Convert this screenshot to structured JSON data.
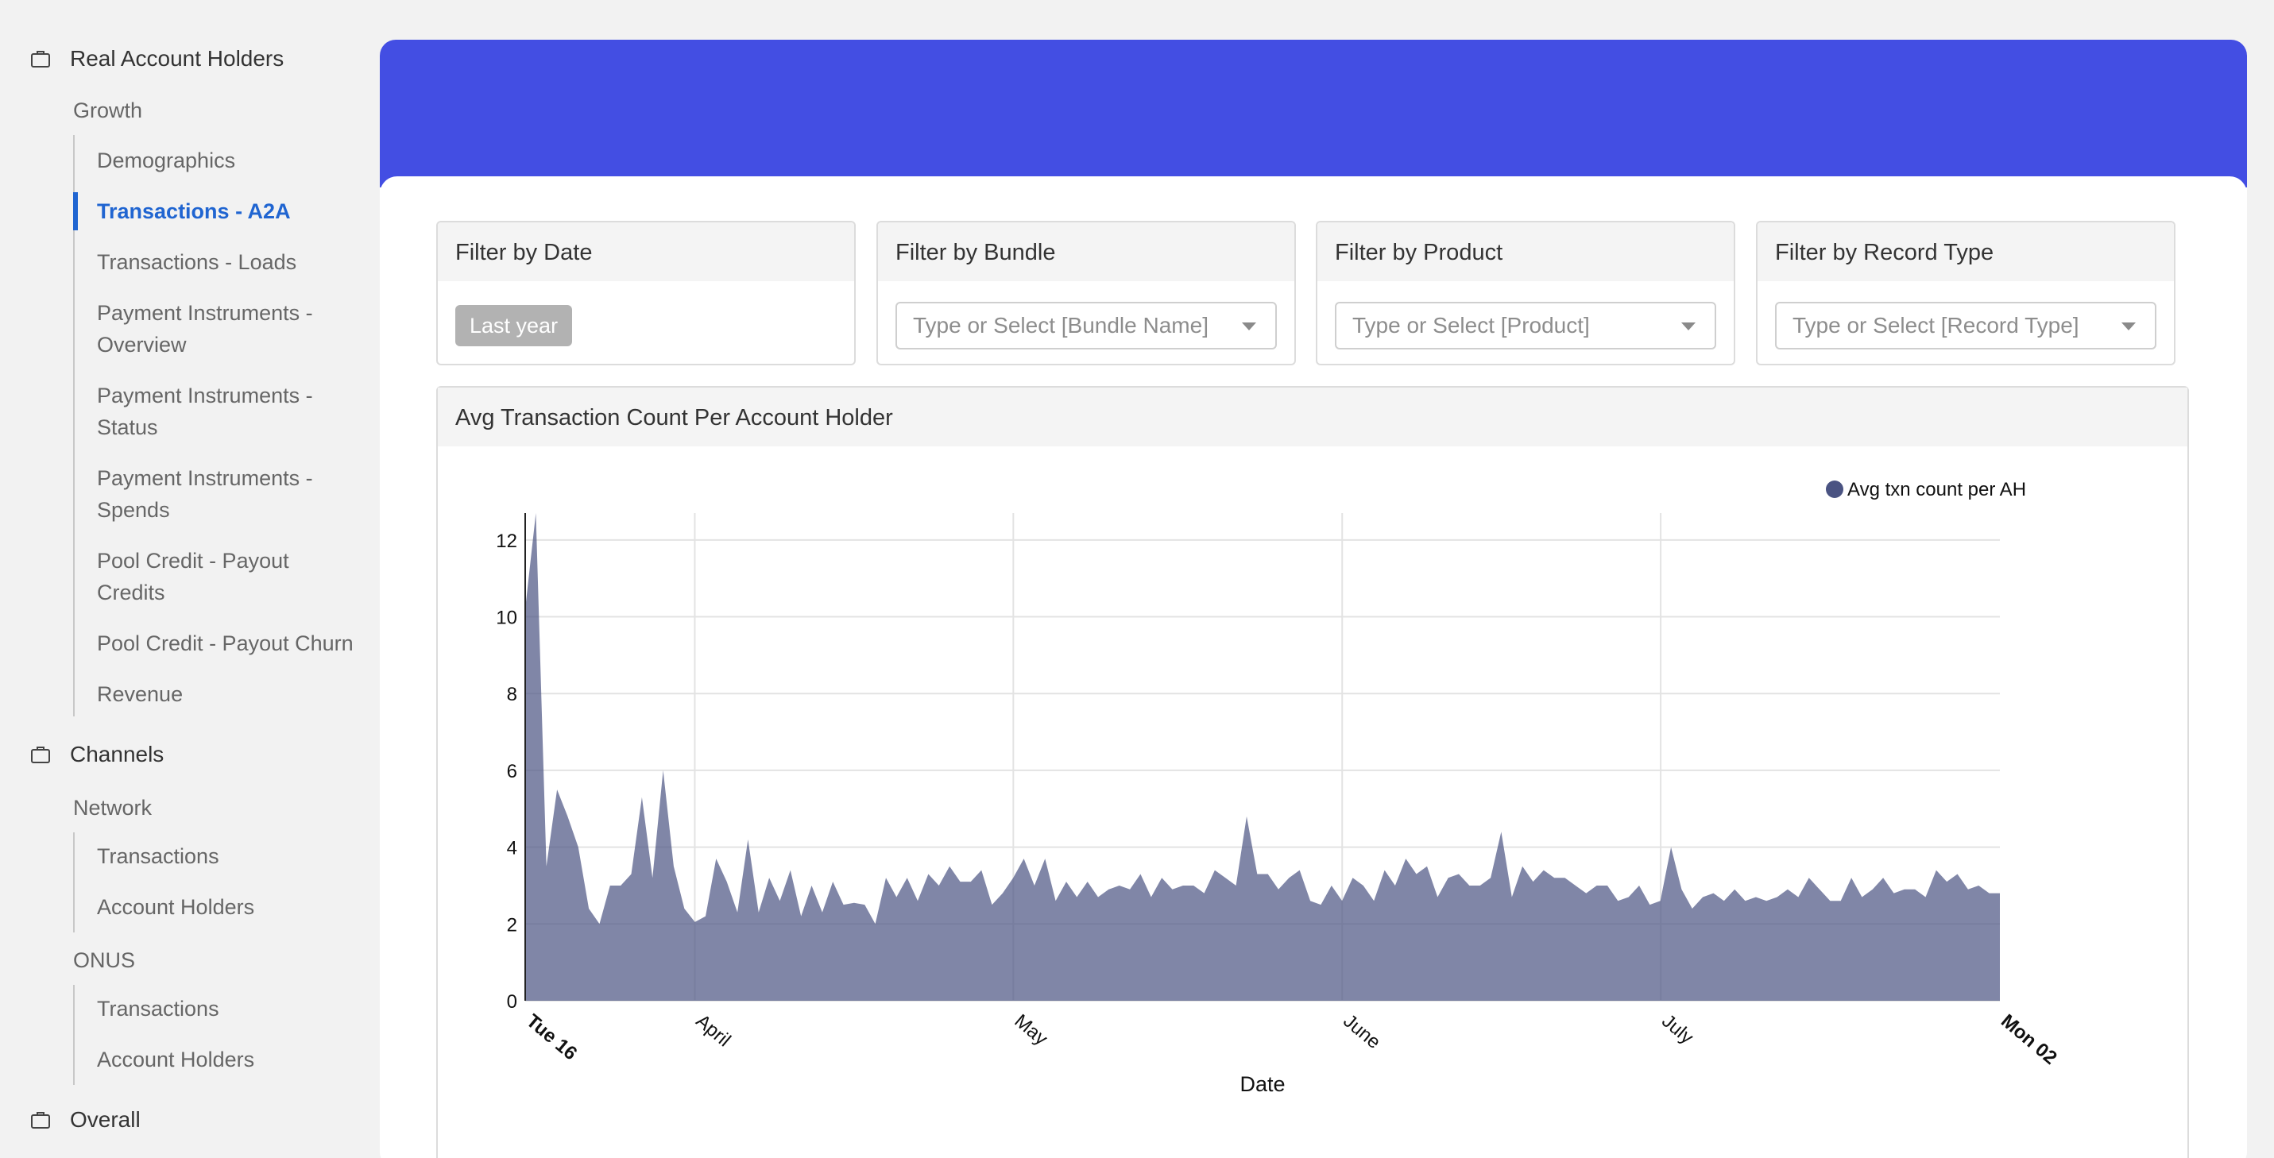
{
  "sidebar": {
    "sections": [
      {
        "label": "Real Account Holders",
        "icon": "briefcase-icon"
      },
      {
        "label": "Channels",
        "icon": "briefcase-icon"
      },
      {
        "label": "Overall",
        "icon": "briefcase-icon"
      }
    ],
    "growth": {
      "label": "Growth",
      "items": [
        "Demographics",
        "Transactions - A2A",
        "Transactions - Loads",
        "Payment Instruments -\nOverview",
        "Payment Instruments -\nStatus",
        "Payment Instruments -\nSpends",
        "Pool Credit - Payout\nCredits",
        "Pool Credit - Payout Churn",
        "Revenue"
      ],
      "active_index": 1
    },
    "network": {
      "label": "Network",
      "items": [
        "Transactions",
        "Account Holders"
      ]
    },
    "onus": {
      "label": "ONUS",
      "items": [
        "Transactions",
        "Account Holders"
      ]
    }
  },
  "colors": {
    "banner": "#434ee3",
    "active": "#2065d1",
    "series": "#4a5382"
  },
  "filters": [
    {
      "title": "Filter by Date",
      "tag": "Last year"
    },
    {
      "title": "Filter by Bundle",
      "placeholder": "Type or Select [Bundle Name]"
    },
    {
      "title": "Filter by Product",
      "placeholder": "Type or Select [Product]"
    },
    {
      "title": "Filter by Record Type",
      "placeholder": "Type or Select [Record Type]"
    }
  ],
  "chart_panel": {
    "title": "Avg Transaction Count Per Account Holder"
  },
  "chart_data": {
    "type": "area",
    "title": "",
    "xlabel": "Date",
    "ylabel": "",
    "x_range": [
      "Tue 16",
      "Mon 02"
    ],
    "x_tick_labels": [
      "Tue 16",
      "April",
      "May",
      "June",
      "July",
      "Mon 02"
    ],
    "y_ticks": [
      0,
      2,
      4,
      6,
      8,
      10,
      12
    ],
    "ylim": [
      0,
      12.7
    ],
    "grid": true,
    "legend": "top-right",
    "series": [
      {
        "name": "Avg txn count per AH",
        "values": [
          10.2,
          12.7,
          3.5,
          5.5,
          4.8,
          4.0,
          2.4,
          2.0,
          3.0,
          3.0,
          3.3,
          5.3,
          3.2,
          6.0,
          3.5,
          2.4,
          2.05,
          2.2,
          3.7,
          3.1,
          2.3,
          4.2,
          2.3,
          3.2,
          2.6,
          3.4,
          2.2,
          3.0,
          2.3,
          3.1,
          2.5,
          2.55,
          2.5,
          2.0,
          3.2,
          2.7,
          3.2,
          2.6,
          3.3,
          3.0,
          3.5,
          3.1,
          3.1,
          3.4,
          2.5,
          2.8,
          3.2,
          3.7,
          3.0,
          3.7,
          2.6,
          3.1,
          2.7,
          3.1,
          2.7,
          2.9,
          3.0,
          2.9,
          3.3,
          2.7,
          3.2,
          2.9,
          3.0,
          3.0,
          2.8,
          3.4,
          3.2,
          3.0,
          4.8,
          3.3,
          3.3,
          2.9,
          3.2,
          3.4,
          2.6,
          2.5,
          3.0,
          2.6,
          3.2,
          3.0,
          2.6,
          3.4,
          3.0,
          3.7,
          3.3,
          3.5,
          2.7,
          3.2,
          3.3,
          3.0,
          3.0,
          3.2,
          4.4,
          2.7,
          3.5,
          3.1,
          3.4,
          3.2,
          3.2,
          3.0,
          2.8,
          3.0,
          3.0,
          2.6,
          2.7,
          3.0,
          2.5,
          2.6,
          4.0,
          2.9,
          2.4,
          2.7,
          2.8,
          2.6,
          2.9,
          2.6,
          2.7,
          2.6,
          2.7,
          2.9,
          2.7,
          3.2,
          2.9,
          2.6,
          2.6,
          3.2,
          2.7,
          2.9,
          3.2,
          2.8,
          2.9,
          2.9,
          2.7,
          3.4,
          3.1,
          3.3,
          2.9,
          3.0,
          2.8,
          2.8
        ]
      }
    ]
  }
}
